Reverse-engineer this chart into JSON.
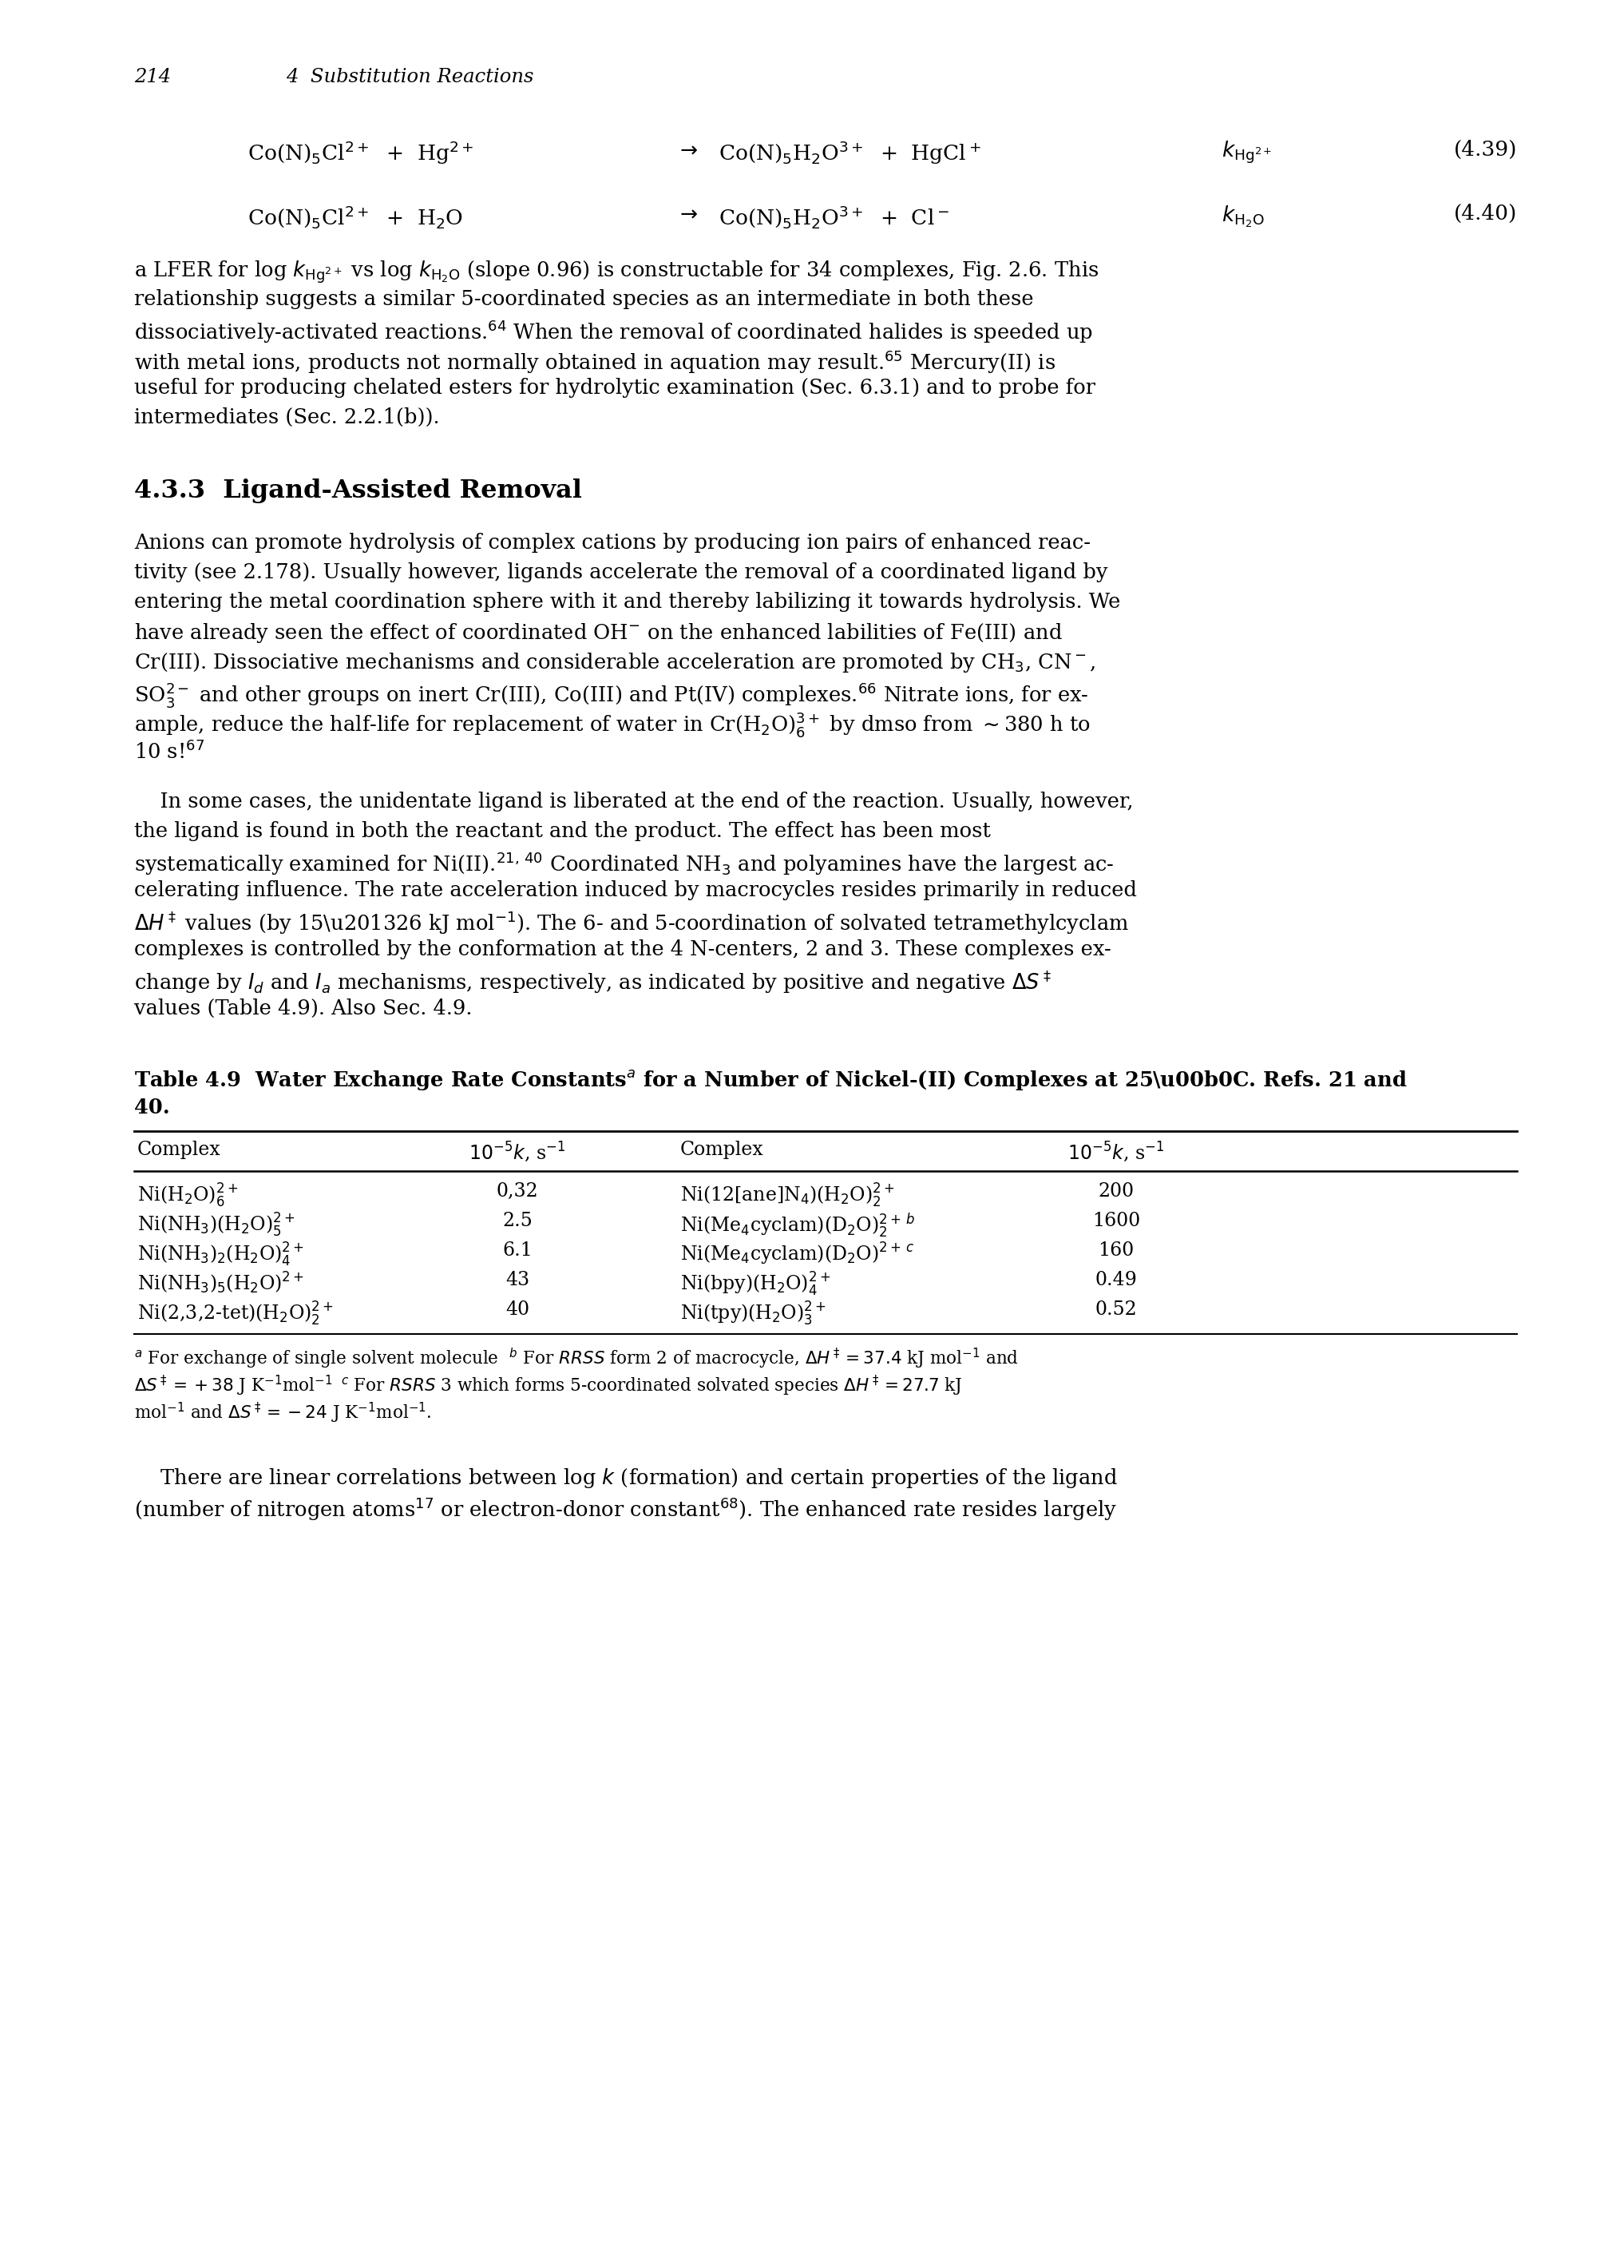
{
  "page_number": "214",
  "chapter_header": "4  Substitution Reactions",
  "table_rows": [
    [
      "Ni(H$_2$O)$_6^{2+}$",
      "0,32",
      "Ni(12[ane]N$_4$)(H$_2$O)$_2^{2+}$",
      "200"
    ],
    [
      "Ni(NH$_3$)(H$_2$O)$_5^{2+}$",
      "2.5",
      "Ni(Me$_4$cyclam)(D$_2$O)$_2^{2+\\,b}$",
      "1600"
    ],
    [
      "Ni(NH$_3$)$_2$(H$_2$O)$_4^{2+}$",
      "6.1",
      "Ni(Me$_4$cyclam)(D$_2$O)$^{2+\\,c}$",
      "160"
    ],
    [
      "Ni(NH$_3$)$_5$(H$_2$O)$^{2+}$",
      "43",
      "Ni(bpy)(H$_2$O)$_4^{2+}$",
      "0.49"
    ],
    [
      "Ni(2,3,2-tet)(H$_2$O)$_2^{2+}$",
      "40",
      "Ni(tpy)(H$_2$O)$_3^{2+}$",
      "0.52"
    ]
  ]
}
